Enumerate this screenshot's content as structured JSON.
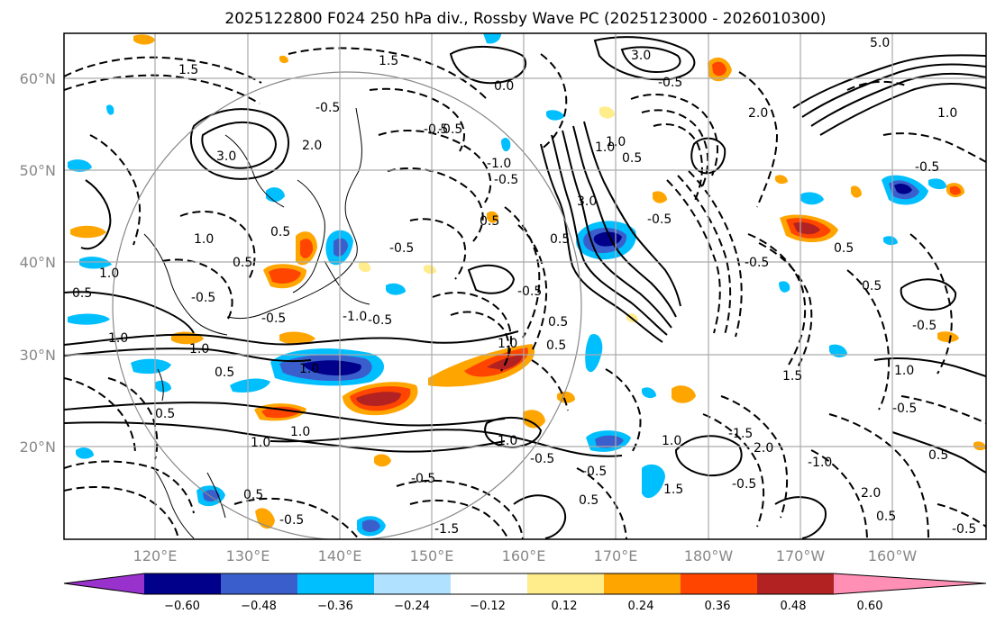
{
  "title": "2025122800 F024 250 hPa div., Rossby Wave PC (2025123000 - 2026010300)",
  "lon_ticks": [
    "120°E",
    "130°E",
    "140°E",
    "150°E",
    "160°E",
    "170°E",
    "180°W",
    "170°W",
    "160°W"
  ],
  "lat_ticks": [
    "60°N",
    "50°N",
    "40°N",
    "30°N",
    "20°N"
  ],
  "colorbar": {
    "colors": [
      "#9932cc",
      "#00008b",
      "#3a5fcd",
      "#00bfff",
      "#b0e2ff",
      "#ffffff",
      "#ffec8b",
      "#ffa500",
      "#ff4500",
      "#b22222",
      "#ff8fb4"
    ],
    "labels": [
      "−0.60",
      "−0.48",
      "−0.36",
      "−0.24",
      "−0.12",
      "0.12",
      "0.24",
      "0.36",
      "0.48",
      "0.60"
    ]
  },
  "contour_labels": [
    {
      "text": "1.5"
    },
    {
      "text": "1.5"
    },
    {
      "text": "0.0"
    },
    {
      "text": "3.0"
    },
    {
      "text": "-0.5"
    },
    {
      "text": "5.0"
    },
    {
      "text": "-0.5"
    },
    {
      "text": "-0.5"
    },
    {
      "text": "3.0"
    },
    {
      "text": "2.0"
    },
    {
      "text": "-1.0"
    },
    {
      "text": "-0.5"
    },
    {
      "text": "1.0"
    },
    {
      "text": "0.5"
    },
    {
      "text": "3.0"
    },
    {
      "text": "-0.5"
    },
    {
      "text": "0.5"
    },
    {
      "text": "0.5"
    },
    {
      "text": "1.0"
    },
    {
      "text": "-0.5"
    },
    {
      "text": "1.0"
    },
    {
      "text": "0.5"
    },
    {
      "text": "-0.5"
    },
    {
      "text": "1.0"
    },
    {
      "text": "0.5"
    },
    {
      "text": "-0.5"
    },
    {
      "text": "1.0"
    },
    {
      "text": "-1.0"
    },
    {
      "text": "1.0"
    },
    {
      "text": "-0.5"
    },
    {
      "text": "0.5"
    },
    {
      "text": "-0.5"
    },
    {
      "text": "1.0"
    },
    {
      "text": "-0.5"
    },
    {
      "text": "0.5"
    },
    {
      "text": "0.5"
    },
    {
      "text": "1.0"
    },
    {
      "text": "0.5"
    },
    {
      "text": "1.0"
    },
    {
      "text": "1.0"
    },
    {
      "text": "-0.5"
    },
    {
      "text": "-0.5"
    },
    {
      "text": "1.0"
    },
    {
      "text": "1.5"
    },
    {
      "text": "-1.5"
    },
    {
      "text": "0.5"
    },
    {
      "text": "1.0"
    },
    {
      "text": "-0.5"
    },
    {
      "text": "-0.5"
    },
    {
      "text": "0.5"
    },
    {
      "text": "-1.5"
    },
    {
      "text": "-0.5"
    },
    {
      "text": "1.0"
    },
    {
      "text": "2.0"
    },
    {
      "text": "-1.0"
    },
    {
      "text": "2.0"
    },
    {
      "text": "-0.5"
    },
    {
      "text": "0.5"
    },
    {
      "text": "-0.5"
    },
    {
      "text": "1.0"
    },
    {
      "text": "0.5"
    },
    {
      "text": "-0.5"
    },
    {
      "text": "1.5"
    },
    {
      "text": "2.0"
    },
    {
      "text": "0.5"
    },
    {
      "text": "0.5"
    },
    {
      "text": "-0.5"
    },
    {
      "text": "0.5"
    },
    {
      "text": "-0.5"
    }
  ]
}
